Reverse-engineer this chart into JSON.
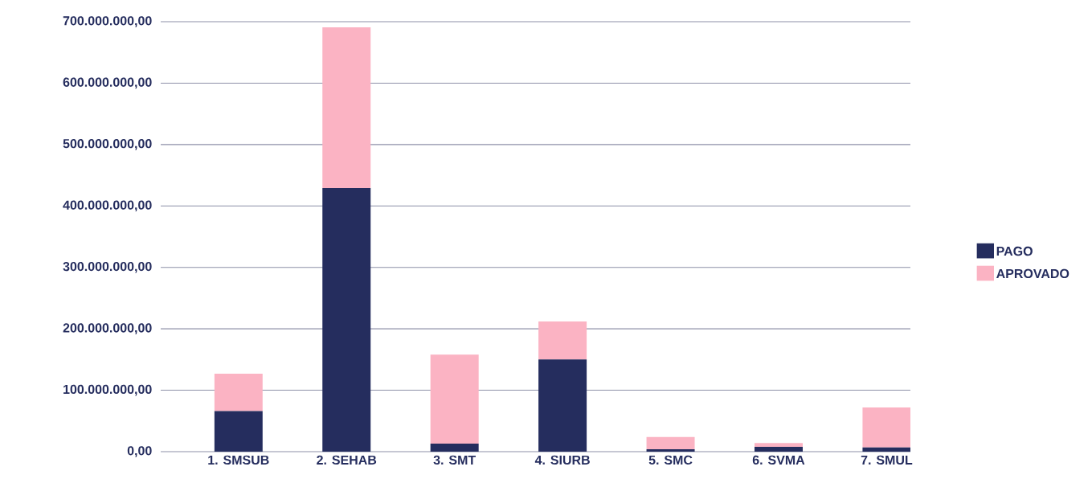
{
  "chart_data": {
    "type": "bar",
    "stacked": true,
    "categories": [
      "1. SMSUB",
      "2. SEHAB",
      "3. SMT",
      "4. SIURB",
      "5. SMC",
      "6. SVMA",
      "7. SMUL"
    ],
    "series": [
      {
        "name": "PAGO",
        "color": "#252d5e",
        "values": [
          66000000,
          429000000,
          13000000,
          150000000,
          4000000,
          8000000,
          7000000
        ]
      },
      {
        "name": "APROVADO",
        "color": "#fbb3c3",
        "values": [
          61000000,
          262000000,
          145000000,
          62000000,
          20000000,
          6000000,
          65000000
        ]
      }
    ],
    "ylim": [
      0,
      700000000
    ],
    "yticks": [
      {
        "value": 0,
        "label": "0,00"
      },
      {
        "value": 100000000,
        "label": "100.000.000,00"
      },
      {
        "value": 200000000,
        "label": "200.000.000,00"
      },
      {
        "value": 300000000,
        "label": "300.000.000,00"
      },
      {
        "value": 400000000,
        "label": "400.000.000,00"
      },
      {
        "value": 500000000,
        "label": "500.000.000,00"
      },
      {
        "value": 600000000,
        "label": "600.000.000,00"
      },
      {
        "value": 700000000,
        "label": "700.000.000,00"
      }
    ],
    "grid": "y",
    "legend": "right"
  }
}
